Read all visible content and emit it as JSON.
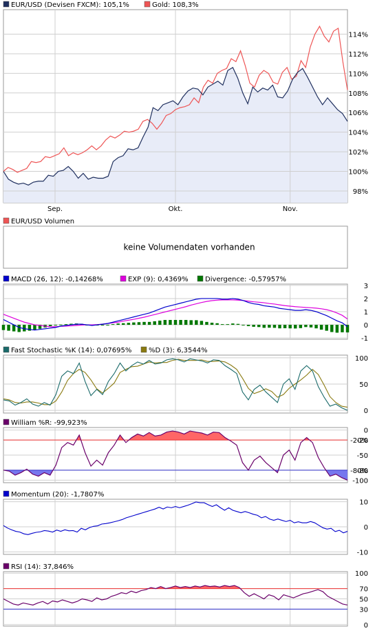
{
  "colors": {
    "eurusd": "#1f2f5e",
    "gold": "#ee5555",
    "area": "#e8ecf8",
    "grid": "#cfcfcf",
    "frame": "#9a9a9a",
    "macd": "#0000cc",
    "exp": "#dd00dd",
    "divergence": "#007700",
    "stoch_k": "#1a6a6a",
    "stoch_d": "#8a7a10",
    "william": "#6a006a",
    "momentum": "#0000cc",
    "rsi": "#6a006a",
    "upper_fill": "#ff6666",
    "lower_fill": "#7777ee",
    "upper_line": "#ee3333",
    "lower_line": "#3333cc"
  },
  "x_axis": {
    "labels": [
      {
        "text": "Sep.",
        "index": 9
      },
      {
        "text": "Okt.",
        "index": 30
      },
      {
        "text": "Nov.",
        "index": 50
      }
    ],
    "count": 61
  },
  "chart_data": [
    {
      "type": "line",
      "panel": "price",
      "legend": [
        {
          "text": "EUR/USD (Devisen FXCM): 105,1%",
          "color": "#1f2f5e"
        },
        {
          "text": "Gold: 108,3%",
          "color": "#ee5555"
        }
      ],
      "ylim": [
        96.8,
        116.5
      ],
      "yticks": [
        "98%",
        "100%",
        "102%",
        "104%",
        "106%",
        "108%",
        "110%",
        "112%",
        "114%"
      ],
      "ytick_values": [
        98,
        100,
        102,
        104,
        106,
        108,
        110,
        112,
        114
      ],
      "series": [
        {
          "name": "EUR/USD (Devisen FXCM)",
          "values": [
            100,
            99.2,
            98.9,
            98.7,
            98.8,
            98.6,
            98.9,
            99.0,
            99.0,
            99.6,
            99.5,
            100.0,
            100.1,
            100.5,
            100.0,
            99.3,
            99.8,
            99.2,
            99.4,
            99.3,
            99.3,
            99.5,
            101.0,
            101.4,
            101.6,
            102.3,
            102.2,
            102.4,
            103.5,
            104.5,
            106.5,
            106.2,
            106.8,
            107.0,
            107.2,
            106.8,
            107.6,
            108.2,
            108.5,
            108.4,
            107.8,
            108.6,
            108.9,
            109.2,
            108.8,
            110.3,
            110.6,
            109.5,
            108.0,
            106.9,
            108.6,
            108.1,
            108.5,
            108.3,
            108.8,
            107.6,
            107.5,
            108.2,
            109.4,
            110.1,
            110.5,
            109.6,
            108.6,
            107.6,
            106.8,
            107.5,
            106.9,
            106.3,
            105.9,
            105.1
          ]
        },
        {
          "name": "Gold",
          "values": [
            100,
            100.4,
            100.2,
            99.9,
            100.1,
            100.3,
            101.0,
            100.9,
            101.0,
            101.5,
            101.4,
            101.6,
            101.8,
            102.4,
            101.6,
            101.9,
            101.7,
            101.9,
            102.2,
            102.6,
            102.2,
            102.6,
            103.2,
            103.6,
            103.4,
            103.7,
            104.1,
            104.0,
            104.1,
            104.3,
            105.1,
            105.3,
            104.9,
            104.3,
            104.9,
            105.7,
            105.9,
            106.3,
            106.5,
            106.6,
            106.8,
            107.5,
            107.0,
            108.6,
            109.3,
            109.0,
            110.0,
            110.3,
            110.5,
            111.5,
            111.2,
            112.3,
            110.8,
            109.0,
            108.6,
            109.8,
            110.3,
            110.0,
            109.1,
            108.9,
            110.1,
            110.6,
            109.4,
            109.7,
            111.3,
            110.6,
            112.7,
            114.0,
            114.8,
            113.8,
            113.2,
            114.3,
            114.6,
            111.2,
            108.3
          ]
        }
      ]
    },
    {
      "type": "bar",
      "panel": "volume",
      "legend": [
        {
          "text": "EUR/USD Volumen",
          "color": "#ee5555"
        }
      ],
      "notice": "keine Volumendaten vorhanden"
    },
    {
      "type": "line",
      "panel": "macd",
      "legend": [
        {
          "text": "MACD (26, 12): -0,14268%",
          "color": "#0000cc"
        },
        {
          "text": "EXP (9): 0,4369%",
          "color": "#dd00dd"
        },
        {
          "text": "Divergence: -0,57957%",
          "color": "#007700"
        }
      ],
      "ylim": [
        -1.1,
        3.1
      ],
      "yticks": [
        "-1",
        "0",
        "1",
        "2",
        "3"
      ],
      "ytick_values": [
        -1,
        0,
        1,
        2,
        3
      ],
      "series": [
        {
          "name": "MACD (26, 12)",
          "values": [
            0.4,
            0.2,
            0.0,
            -0.2,
            -0.3,
            -0.35,
            -0.4,
            -0.35,
            -0.3,
            -0.25,
            -0.2,
            -0.1,
            -0.05,
            0.0,
            0.05,
            0.05,
            0.0,
            -0.05,
            0.0,
            0.05,
            0.1,
            0.2,
            0.3,
            0.4,
            0.5,
            0.6,
            0.7,
            0.8,
            0.9,
            1.05,
            1.2,
            1.35,
            1.45,
            1.55,
            1.65,
            1.75,
            1.85,
            1.95,
            2.0,
            2.0,
            2.0,
            2.0,
            1.95,
            1.95,
            2.0,
            1.95,
            1.85,
            1.7,
            1.6,
            1.55,
            1.45,
            1.4,
            1.35,
            1.25,
            1.2,
            1.15,
            1.1,
            1.1,
            1.15,
            1.1,
            1.0,
            0.85,
            0.7,
            0.5,
            0.3,
            0.15,
            -0.14
          ]
        },
        {
          "name": "EXP (9)",
          "values": [
            0.8,
            0.65,
            0.5,
            0.35,
            0.2,
            0.1,
            0.0,
            -0.05,
            -0.1,
            -0.15,
            -0.15,
            -0.12,
            -0.1,
            -0.08,
            -0.05,
            -0.02,
            0.0,
            0.0,
            0.02,
            0.05,
            0.1,
            0.15,
            0.2,
            0.28,
            0.35,
            0.42,
            0.5,
            0.58,
            0.68,
            0.78,
            0.88,
            0.98,
            1.08,
            1.18,
            1.28,
            1.38,
            1.5,
            1.6,
            1.7,
            1.78,
            1.84,
            1.88,
            1.9,
            1.9,
            1.9,
            1.88,
            1.85,
            1.8,
            1.75,
            1.72,
            1.68,
            1.62,
            1.58,
            1.52,
            1.46,
            1.42,
            1.38,
            1.35,
            1.32,
            1.3,
            1.27,
            1.22,
            1.15,
            1.05,
            0.9,
            0.72,
            0.44
          ]
        },
        {
          "name": "Divergence",
          "kind": "bars",
          "values": [
            -0.4,
            -0.45,
            -0.5,
            -0.55,
            -0.5,
            -0.45,
            -0.4,
            -0.3,
            -0.2,
            -0.1,
            -0.05,
            0.02,
            0.05,
            0.08,
            0.1,
            0.07,
            0.0,
            -0.05,
            -0.02,
            0.0,
            0.0,
            0.05,
            0.1,
            0.12,
            0.15,
            0.18,
            0.2,
            0.22,
            0.22,
            0.27,
            0.32,
            0.37,
            0.37,
            0.37,
            0.37,
            0.37,
            0.35,
            0.35,
            0.3,
            0.22,
            0.16,
            0.12,
            0.05,
            0.05,
            0.1,
            0.07,
            0.0,
            -0.1,
            -0.15,
            -0.17,
            -0.23,
            -0.22,
            -0.23,
            -0.27,
            -0.26,
            -0.27,
            -0.28,
            -0.25,
            -0.17,
            -0.2,
            -0.27,
            -0.37,
            -0.45,
            -0.55,
            -0.6,
            -0.57,
            -0.58
          ]
        }
      ]
    },
    {
      "type": "line",
      "panel": "stochastic",
      "legend": [
        {
          "text": "Fast Stochastic %K (14): 0,07695%",
          "color": "#1a6a6a"
        },
        {
          "text": "%D (3): 6,3544%",
          "color": "#8a7a10"
        }
      ],
      "ylim": [
        -5,
        105
      ],
      "yticks": [
        "0",
        "50",
        "100"
      ],
      "ytick_values": [
        0,
        50,
        100
      ],
      "series": [
        {
          "name": "Fast Stochastic %K (14)",
          "values": [
            20,
            18,
            10,
            15,
            22,
            12,
            8,
            15,
            10,
            30,
            65,
            75,
            70,
            90,
            55,
            28,
            40,
            30,
            55,
            70,
            90,
            75,
            85,
            92,
            88,
            95,
            88,
            90,
            96,
            98,
            96,
            92,
            98,
            96,
            94,
            90,
            96,
            95,
            85,
            78,
            70,
            35,
            20,
            40,
            48,
            35,
            25,
            15,
            50,
            60,
            40,
            75,
            85,
            75,
            45,
            25,
            8,
            12,
            5,
            0
          ]
        },
        {
          "name": "%D (3)",
          "values": [
            22,
            20,
            15,
            14,
            16,
            16,
            14,
            11,
            11,
            18,
            35,
            57,
            70,
            78,
            72,
            58,
            41,
            33,
            42,
            52,
            72,
            78,
            83,
            84,
            88,
            92,
            90,
            91,
            91,
            95,
            97,
            95,
            95,
            95,
            96,
            93,
            93,
            94,
            92,
            86,
            78,
            61,
            42,
            32,
            36,
            41,
            36,
            25,
            30,
            42,
            50,
            58,
            67,
            78,
            68,
            48,
            26,
            15,
            8,
            6
          ]
        }
      ]
    },
    {
      "type": "area",
      "panel": "william",
      "legend": [
        {
          "text": "William %R: -99,923%",
          "color": "#6a006a"
        }
      ],
      "ylim": [
        -105,
        5
      ],
      "yticks": [
        "0",
        "-20",
        "-50",
        "-80",
        "-100"
      ],
      "ytick_values": [
        0,
        -20,
        -50,
        -80,
        -100
      ],
      "bands": [
        {
          "value": -20,
          "label": "-20%",
          "color": "#ee3333"
        },
        {
          "value": -80,
          "label": "-80%",
          "color": "#3333cc"
        }
      ],
      "series": [
        {
          "name": "William %R",
          "values": [
            -80,
            -82,
            -90,
            -85,
            -78,
            -88,
            -92,
            -85,
            -90,
            -70,
            -35,
            -25,
            -30,
            -10,
            -45,
            -72,
            -60,
            -70,
            -45,
            -30,
            -10,
            -25,
            -15,
            -8,
            -12,
            -5,
            -12,
            -10,
            -4,
            -2,
            -4,
            -8,
            -2,
            -4,
            -6,
            -10,
            -4,
            -5,
            -15,
            -22,
            -30,
            -65,
            -80,
            -60,
            -52,
            -65,
            -75,
            -85,
            -50,
            -40,
            -60,
            -25,
            -15,
            -25,
            -55,
            -75,
            -92,
            -88,
            -95,
            -100
          ]
        }
      ]
    },
    {
      "type": "line",
      "panel": "momentum",
      "legend": [
        {
          "text": "Momentum (20): -1,7807%",
          "color": "#0000cc"
        }
      ],
      "ylim": [
        -11,
        11
      ],
      "yticks": [
        "10",
        "0",
        "-10"
      ],
      "ytick_values": [
        10,
        0,
        -10
      ],
      "series": [
        {
          "name": "Momentum (20)",
          "values": [
            0.5,
            -0.5,
            -1.2,
            -1.8,
            -2.1,
            -2.8,
            -3.1,
            -2.6,
            -2.2,
            -2.0,
            -1.5,
            -1.7,
            -2.1,
            -1.3,
            -1.8,
            -1.2,
            -1.6,
            -1.5,
            -2.1,
            -0.6,
            -1.2,
            -0.3,
            0.2,
            0.4,
            1.1,
            1.3,
            1.6,
            2.0,
            2.4,
            2.9,
            3.6,
            4.1,
            4.6,
            5.1,
            5.6,
            6.1,
            6.6,
            7.1,
            7.8,
            7.1,
            7.9,
            7.6,
            8.1,
            7.6,
            8.1,
            8.6,
            9.2,
            9.9,
            9.6,
            9.6,
            8.8,
            8.1,
            8.8,
            7.6,
            6.6,
            7.6,
            6.6,
            6.1,
            5.6,
            6.1,
            5.6,
            5.0,
            4.6,
            3.6,
            4.1,
            3.1,
            2.6,
            3.1,
            2.6,
            2.1,
            2.6,
            1.6,
            2.0,
            1.6,
            1.6,
            2.1,
            1.6,
            0.6,
            -0.4,
            -0.9,
            -0.6,
            -1.9,
            -1.4,
            -2.4,
            -1.8
          ]
        }
      ]
    },
    {
      "type": "area",
      "panel": "rsi",
      "legend": [
        {
          "text": "RSI (14): 37,846%",
          "color": "#6a006a"
        }
      ],
      "ylim": [
        -3,
        103
      ],
      "yticks": [
        "100",
        "70",
        "50",
        "30",
        "0"
      ],
      "ytick_values": [
        100,
        70,
        50,
        30,
        0
      ],
      "bands": [
        {
          "value": 70,
          "label": "70%",
          "color": "#ee3333"
        },
        {
          "value": 30,
          "label": "30%",
          "color": "#3333cc"
        }
      ],
      "series": [
        {
          "name": "RSI (14)",
          "values": [
            50,
            45,
            40,
            38,
            42,
            40,
            38,
            42,
            45,
            40,
            46,
            44,
            48,
            45,
            42,
            45,
            50,
            48,
            45,
            52,
            48,
            50,
            55,
            58,
            62,
            60,
            65,
            62,
            66,
            68,
            72,
            70,
            74,
            70,
            72,
            75,
            72,
            74,
            72,
            75,
            73,
            76,
            74,
            75,
            73,
            76,
            74,
            76,
            72,
            62,
            55,
            60,
            55,
            50,
            58,
            55,
            48,
            58,
            55,
            52,
            56,
            60,
            62,
            65,
            68,
            64,
            55,
            50,
            45,
            40,
            38
          ]
        }
      ]
    }
  ]
}
